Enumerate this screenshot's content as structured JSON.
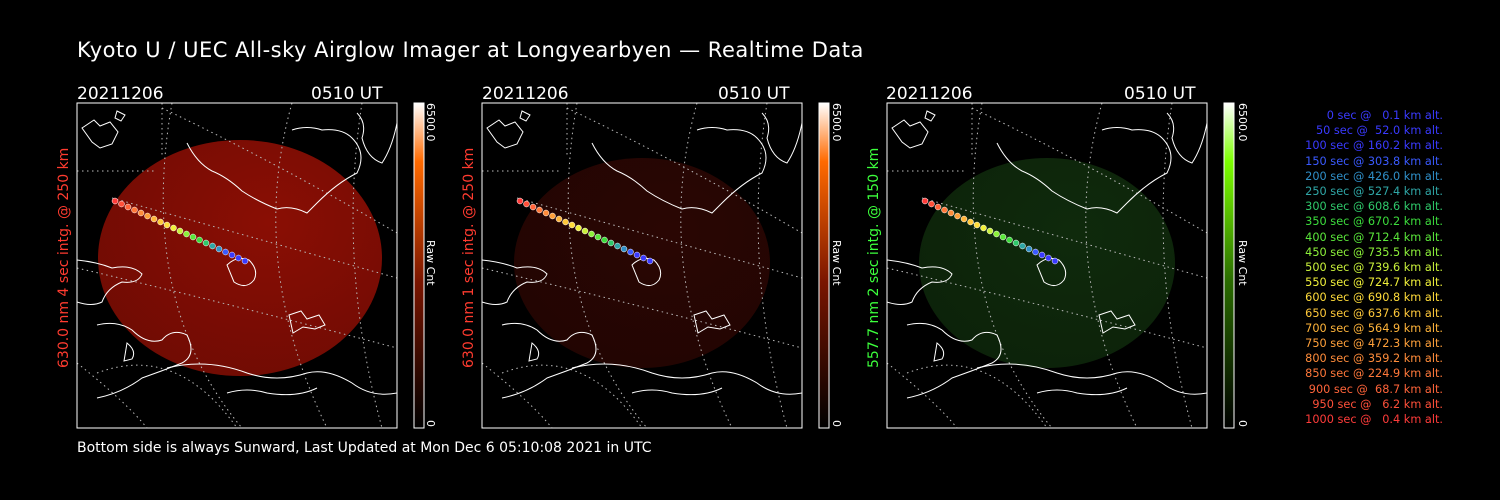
{
  "title": "Kyoto U / UEC All-sky Airglow Imager at Longyearbyen — Realtime Data",
  "footer": "Bottom side is always Sunward, Last Updated at Mon Dec  6 05:10:08 2021 in UTC",
  "panels": [
    {
      "date": "20211206",
      "time": "0510 UT",
      "side_label": "630.0 nm 4 sec intg. @ 250 km",
      "side_color": "#ff3b2f",
      "cbar_max": "6500.0",
      "cbar_min": "0",
      "cbar_label": "Raw Cnt",
      "image_color": "#8a0e04",
      "cbar_top": "#ff6a00",
      "cbar_mid": "#7a1500"
    },
    {
      "date": "20211206",
      "time": "0510 UT",
      "side_label": "630.0 nm 1 sec intg. @ 250 km",
      "side_color": "#ff3b2f",
      "cbar_max": "6500.0",
      "cbar_min": "0",
      "cbar_label": "Raw Cnt",
      "image_color": "#2a0603",
      "cbar_top": "#ff6a00",
      "cbar_mid": "#7a1500"
    },
    {
      "date": "20211206",
      "time": "0510 UT",
      "side_label": "557.7 nm 2 sec intg. @ 150 km",
      "side_color": "#3cff3c",
      "cbar_max": "6500.0",
      "cbar_min": "0",
      "cbar_label": "Raw Cnt",
      "image_color": "#0f2a0c",
      "cbar_top": "#7cff00",
      "cbar_mid": "#2a6b00"
    }
  ],
  "legend": [
    {
      "text": "0 sec @   0.1 km alt.",
      "color": "#3a3aff"
    },
    {
      "text": "50 sec @  52.0 km alt.",
      "color": "#3a3aff"
    },
    {
      "text": "100 sec @ 160.2 km alt.",
      "color": "#3a3aff"
    },
    {
      "text": "150 sec @ 303.8 km alt.",
      "color": "#3a5aff"
    },
    {
      "text": "200 sec @ 426.0 km alt.",
      "color": "#2f8fc8"
    },
    {
      "text": "250 sec @ 527.4 km alt.",
      "color": "#2fa6a6"
    },
    {
      "text": "300 sec @ 608.6 km alt.",
      "color": "#2fc86a"
    },
    {
      "text": "350 sec @ 670.2 km alt.",
      "color": "#3cdc3c"
    },
    {
      "text": "400 sec @ 712.4 km alt.",
      "color": "#5ae63a"
    },
    {
      "text": "450 sec @ 735.5 km alt.",
      "color": "#8cf03a"
    },
    {
      "text": "500 sec @ 739.6 km alt.",
      "color": "#c8f03a"
    },
    {
      "text": "550 sec @ 724.7 km alt.",
      "color": "#f0f03a"
    },
    {
      "text": "600 sec @ 690.8 km alt.",
      "color": "#ffdc3a"
    },
    {
      "text": "650 sec @ 637.6 km alt.",
      "color": "#ffc83a"
    },
    {
      "text": "700 sec @ 564.9 km alt.",
      "color": "#ffb43a"
    },
    {
      "text": "750 sec @ 472.3 km alt.",
      "color": "#ffa03a"
    },
    {
      "text": "800 sec @ 359.2 km alt.",
      "color": "#ff8c3a"
    },
    {
      "text": "850 sec @ 224.9 km alt.",
      "color": "#ff783a"
    },
    {
      "text": "900 sec @  68.7 km alt.",
      "color": "#ff643a"
    },
    {
      "text": "950 sec @   6.2 km alt.",
      "color": "#ff503a"
    },
    {
      "text": "1000 sec @   0.4 km alt.",
      "color": "#ff3c3a"
    }
  ]
}
